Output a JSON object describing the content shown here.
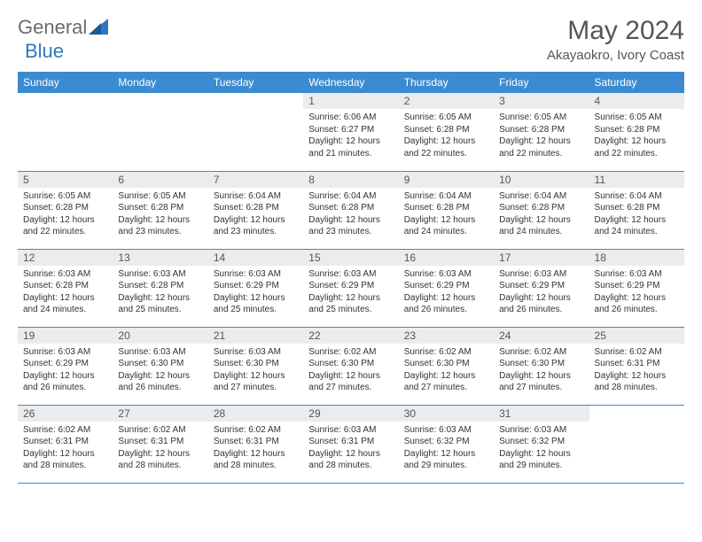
{
  "logo": {
    "text1": "General",
    "text2": "Blue"
  },
  "title": "May 2024",
  "location": "Akayaokro, Ivory Coast",
  "colors": {
    "header_bg": "#3b8bd0",
    "header_text": "#ffffff",
    "daynum_bg": "#ececec",
    "border": "#3b8bd0",
    "logo_blue": "#2b78c2",
    "logo_gray": "#6b6b6b"
  },
  "weekdays": [
    "Sunday",
    "Monday",
    "Tuesday",
    "Wednesday",
    "Thursday",
    "Friday",
    "Saturday"
  ],
  "weeks": [
    [
      null,
      null,
      null,
      {
        "n": "1",
        "sr": "6:06 AM",
        "ss": "6:27 PM",
        "dl": "12 hours and 21 minutes."
      },
      {
        "n": "2",
        "sr": "6:05 AM",
        "ss": "6:28 PM",
        "dl": "12 hours and 22 minutes."
      },
      {
        "n": "3",
        "sr": "6:05 AM",
        "ss": "6:28 PM",
        "dl": "12 hours and 22 minutes."
      },
      {
        "n": "4",
        "sr": "6:05 AM",
        "ss": "6:28 PM",
        "dl": "12 hours and 22 minutes."
      }
    ],
    [
      {
        "n": "5",
        "sr": "6:05 AM",
        "ss": "6:28 PM",
        "dl": "12 hours and 22 minutes."
      },
      {
        "n": "6",
        "sr": "6:05 AM",
        "ss": "6:28 PM",
        "dl": "12 hours and 23 minutes."
      },
      {
        "n": "7",
        "sr": "6:04 AM",
        "ss": "6:28 PM",
        "dl": "12 hours and 23 minutes."
      },
      {
        "n": "8",
        "sr": "6:04 AM",
        "ss": "6:28 PM",
        "dl": "12 hours and 23 minutes."
      },
      {
        "n": "9",
        "sr": "6:04 AM",
        "ss": "6:28 PM",
        "dl": "12 hours and 24 minutes."
      },
      {
        "n": "10",
        "sr": "6:04 AM",
        "ss": "6:28 PM",
        "dl": "12 hours and 24 minutes."
      },
      {
        "n": "11",
        "sr": "6:04 AM",
        "ss": "6:28 PM",
        "dl": "12 hours and 24 minutes."
      }
    ],
    [
      {
        "n": "12",
        "sr": "6:03 AM",
        "ss": "6:28 PM",
        "dl": "12 hours and 24 minutes."
      },
      {
        "n": "13",
        "sr": "6:03 AM",
        "ss": "6:28 PM",
        "dl": "12 hours and 25 minutes."
      },
      {
        "n": "14",
        "sr": "6:03 AM",
        "ss": "6:29 PM",
        "dl": "12 hours and 25 minutes."
      },
      {
        "n": "15",
        "sr": "6:03 AM",
        "ss": "6:29 PM",
        "dl": "12 hours and 25 minutes."
      },
      {
        "n": "16",
        "sr": "6:03 AM",
        "ss": "6:29 PM",
        "dl": "12 hours and 26 minutes."
      },
      {
        "n": "17",
        "sr": "6:03 AM",
        "ss": "6:29 PM",
        "dl": "12 hours and 26 minutes."
      },
      {
        "n": "18",
        "sr": "6:03 AM",
        "ss": "6:29 PM",
        "dl": "12 hours and 26 minutes."
      }
    ],
    [
      {
        "n": "19",
        "sr": "6:03 AM",
        "ss": "6:29 PM",
        "dl": "12 hours and 26 minutes."
      },
      {
        "n": "20",
        "sr": "6:03 AM",
        "ss": "6:30 PM",
        "dl": "12 hours and 26 minutes."
      },
      {
        "n": "21",
        "sr": "6:03 AM",
        "ss": "6:30 PM",
        "dl": "12 hours and 27 minutes."
      },
      {
        "n": "22",
        "sr": "6:02 AM",
        "ss": "6:30 PM",
        "dl": "12 hours and 27 minutes."
      },
      {
        "n": "23",
        "sr": "6:02 AM",
        "ss": "6:30 PM",
        "dl": "12 hours and 27 minutes."
      },
      {
        "n": "24",
        "sr": "6:02 AM",
        "ss": "6:30 PM",
        "dl": "12 hours and 27 minutes."
      },
      {
        "n": "25",
        "sr": "6:02 AM",
        "ss": "6:31 PM",
        "dl": "12 hours and 28 minutes."
      }
    ],
    [
      {
        "n": "26",
        "sr": "6:02 AM",
        "ss": "6:31 PM",
        "dl": "12 hours and 28 minutes."
      },
      {
        "n": "27",
        "sr": "6:02 AM",
        "ss": "6:31 PM",
        "dl": "12 hours and 28 minutes."
      },
      {
        "n": "28",
        "sr": "6:02 AM",
        "ss": "6:31 PM",
        "dl": "12 hours and 28 minutes."
      },
      {
        "n": "29",
        "sr": "6:03 AM",
        "ss": "6:31 PM",
        "dl": "12 hours and 28 minutes."
      },
      {
        "n": "30",
        "sr": "6:03 AM",
        "ss": "6:32 PM",
        "dl": "12 hours and 29 minutes."
      },
      {
        "n": "31",
        "sr": "6:03 AM",
        "ss": "6:32 PM",
        "dl": "12 hours and 29 minutes."
      },
      null
    ]
  ],
  "labels": {
    "sunrise": "Sunrise: ",
    "sunset": "Sunset: ",
    "daylight": "Daylight: "
  }
}
